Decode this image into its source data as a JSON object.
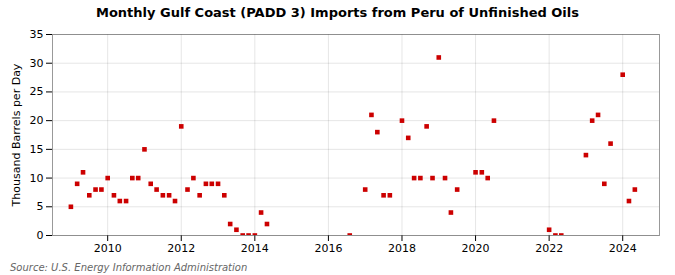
{
  "chart_data": {
    "type": "scatter",
    "title": "Monthly Gulf Coast (PADD 3) Imports from Peru of Unfinished Oils",
    "ylabel": "Thousand Barrels per Day",
    "annotations": [
      "Source: U.S. Energy Information Administration"
    ],
    "color": "#cc0000",
    "marker": "square",
    "grid": true,
    "xlim": [
      2008.5,
      2025.0
    ],
    "xticks": [
      2010,
      2012,
      2014,
      2016,
      2018,
      2020,
      2022,
      2024
    ],
    "ylim": [
      0,
      35
    ],
    "yticks": [
      0,
      5,
      10,
      15,
      20,
      25,
      30,
      35
    ],
    "x": [
      2009.0,
      2009.17,
      2009.33,
      2009.5,
      2009.67,
      2009.83,
      2010.0,
      2010.17,
      2010.33,
      2010.5,
      2010.67,
      2010.83,
      2011.0,
      2011.17,
      2011.33,
      2011.5,
      2011.67,
      2011.83,
      2012.0,
      2012.17,
      2012.33,
      2012.5,
      2012.67,
      2012.83,
      2013.0,
      2013.17,
      2013.33,
      2013.5,
      2013.67,
      2013.83,
      2014.0,
      2014.17,
      2014.33,
      2016.58,
      2017.0,
      2017.17,
      2017.33,
      2017.5,
      2017.67,
      2018.0,
      2018.17,
      2018.33,
      2018.5,
      2018.67,
      2018.83,
      2019.0,
      2019.17,
      2019.33,
      2019.5,
      2020.0,
      2020.17,
      2020.33,
      2020.5,
      2022.0,
      2022.17,
      2022.33,
      2023.0,
      2023.17,
      2023.33,
      2023.5,
      2023.67,
      2024.0,
      2024.17,
      2024.33
    ],
    "values": [
      5,
      9,
      11,
      7,
      8,
      8,
      10,
      7,
      6,
      6,
      10,
      10,
      15,
      9,
      8,
      7,
      7,
      6,
      19,
      8,
      10,
      7,
      9,
      9,
      9,
      7,
      2,
      1,
      0,
      0,
      0,
      4,
      2,
      0,
      8,
      21,
      18,
      7,
      7,
      20,
      17,
      10,
      10,
      19,
      10,
      31,
      10,
      4,
      8,
      11,
      11,
      10,
      20,
      1,
      0,
      0,
      14,
      20,
      21,
      9,
      16,
      28,
      6,
      8
    ]
  }
}
